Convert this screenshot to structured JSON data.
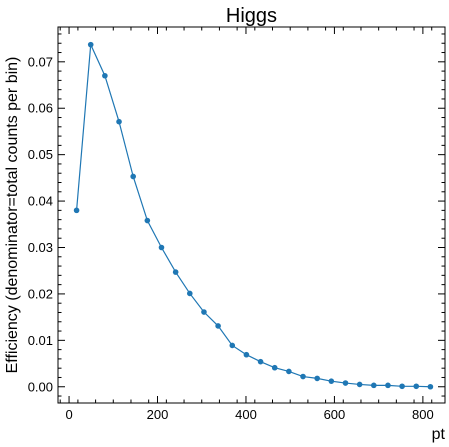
{
  "chart_data": {
    "type": "line",
    "title": "Higgs",
    "xlabel": "pt",
    "ylabel": "Efficiency (denominator=total counts per bin)",
    "xlim": [
      -25,
      850
    ],
    "ylim": [
      -0.0035,
      0.0775
    ],
    "xticks": [
      0,
      200,
      400,
      600,
      800
    ],
    "yticks": [
      0.0,
      0.01,
      0.02,
      0.03,
      0.04,
      0.05,
      0.06,
      0.07
    ],
    "xtick_labels": [
      "0",
      "200",
      "400",
      "600",
      "800"
    ],
    "ytick_labels": [
      "0.00",
      "0.01",
      "0.02",
      "0.03",
      "0.04",
      "0.05",
      "0.06",
      "0.07"
    ],
    "grid": false,
    "series": [
      {
        "color": "#1f77b4",
        "marker": "circle",
        "x": [
          17,
          49,
          81,
          113,
          145,
          177,
          209,
          241,
          273,
          305,
          337,
          369,
          401,
          433,
          465,
          497,
          529,
          561,
          593,
          625,
          657,
          689,
          721,
          753,
          785,
          817
        ],
        "y": [
          0.038,
          0.0737,
          0.067,
          0.0571,
          0.0453,
          0.0358,
          0.03,
          0.0247,
          0.0201,
          0.0161,
          0.0131,
          0.0089,
          0.0069,
          0.0054,
          0.0041,
          0.0033,
          0.0022,
          0.0018,
          0.0012,
          0.0008,
          0.0005,
          0.0003,
          0.0003,
          0.0001,
          0.0001,
          0.0
        ]
      }
    ]
  }
}
